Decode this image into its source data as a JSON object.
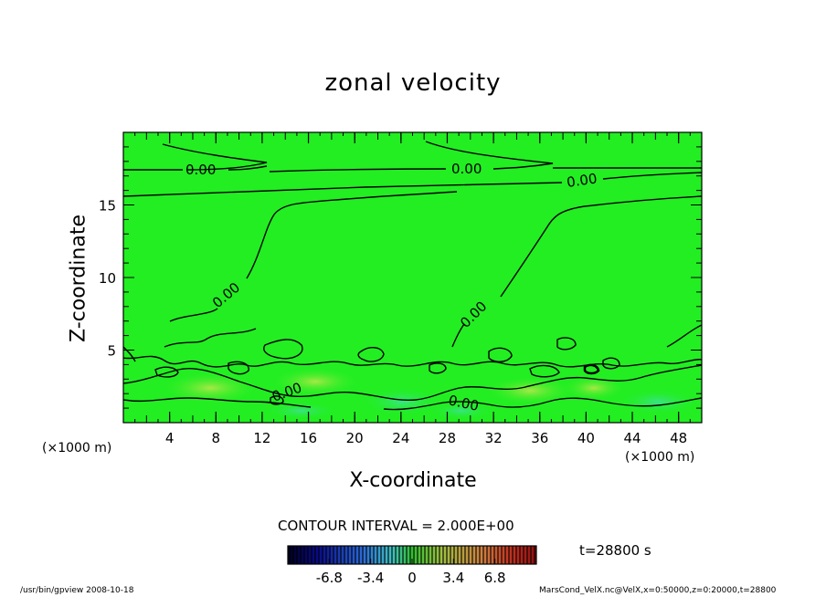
{
  "chart_data": {
    "type": "heatmap",
    "title": "zonal velocity",
    "xlabel": "X-coordinate",
    "ylabel": "Z-coordinate",
    "x_unit_left": "(×1000 m)",
    "x_unit_right": "(×1000 m)",
    "xlim": [
      0,
      50
    ],
    "ylim": [
      0,
      20
    ],
    "x_ticks": [
      "4",
      "8",
      "12",
      "16",
      "20",
      "24",
      "28",
      "32",
      "36",
      "40",
      "44",
      "48"
    ],
    "y_ticks": [
      "5",
      "10",
      "15"
    ],
    "contour_label": "0.00",
    "contour_interval_text": "CONTOUR INTERVAL = 2.000E+00",
    "colorbar_ticks": [
      "-6.8",
      "-3.4",
      "0",
      "3.4",
      "6.8"
    ],
    "colorbar_range": [
      -10.2,
      10.2
    ],
    "time_text": "t=28800 s",
    "background_color": "#22ee22",
    "contour_color": "#000000"
  },
  "footer": {
    "left": "/usr/bin/gpview   2008-10-18",
    "right": "MarsCond_VelX.nc@VelX,x=0:50000,z=0:20000,t=28800"
  }
}
